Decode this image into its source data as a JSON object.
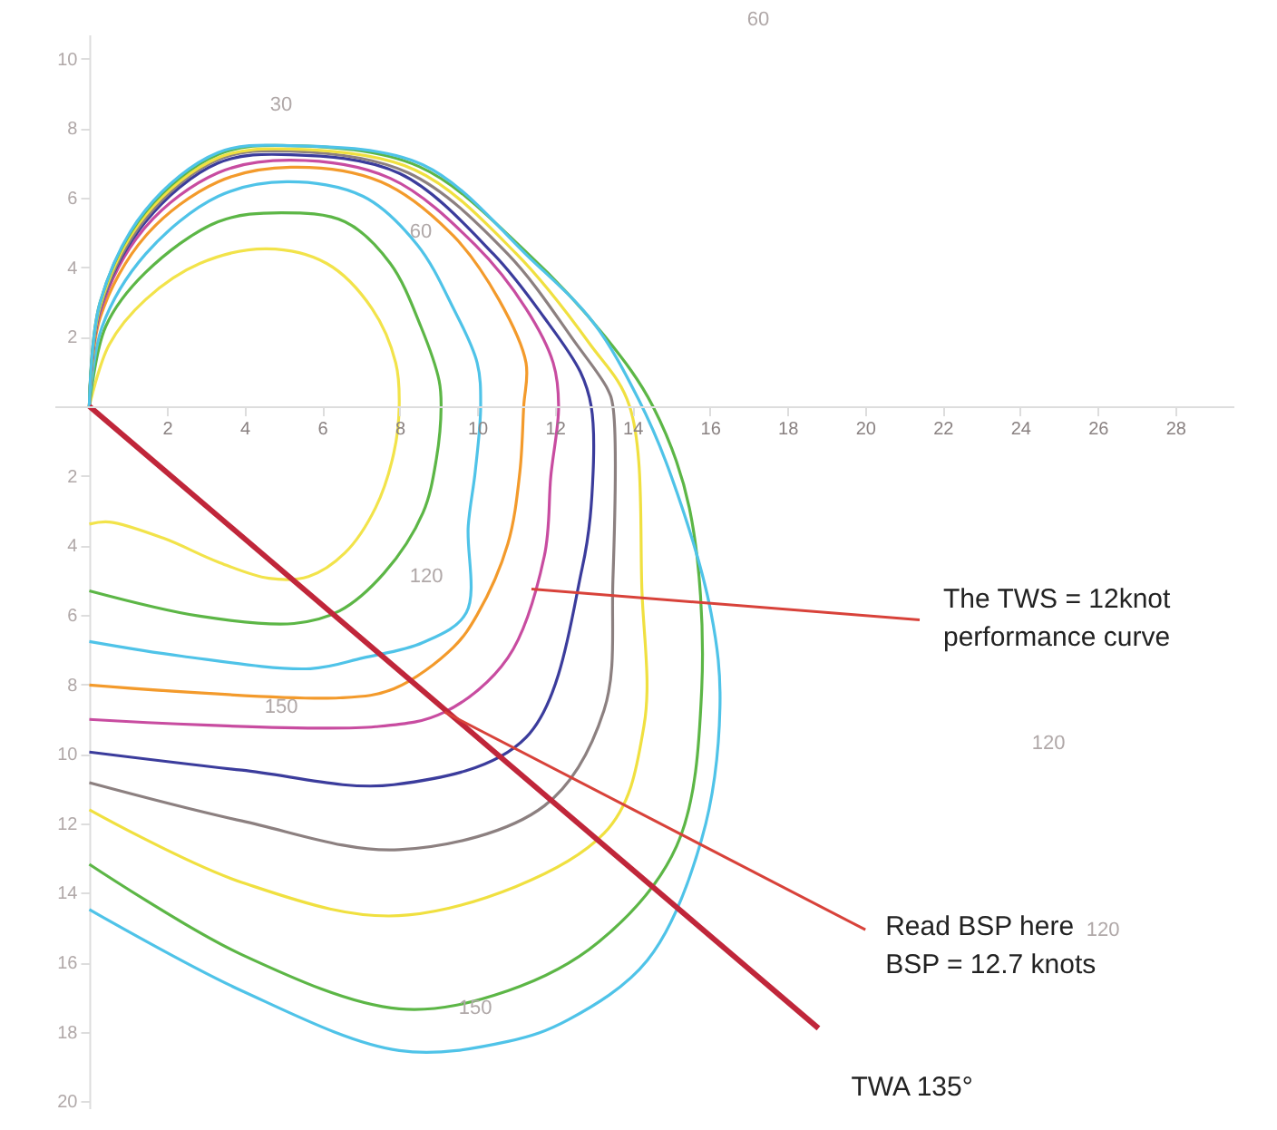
{
  "chart_data": {
    "type": "line",
    "xlim": [
      -0.9,
      29.5
    ],
    "ylim": [
      -20.2,
      10.7
    ],
    "xticks": [
      2,
      4,
      6,
      8,
      10,
      12,
      14,
      16,
      18,
      20,
      22,
      24,
      26,
      28
    ],
    "yticks": [
      10,
      8,
      6,
      4,
      2,
      {
        "value": -2,
        "label": "2"
      },
      {
        "value": -4,
        "label": "4"
      },
      {
        "value": -6,
        "label": "6"
      },
      {
        "value": -8,
        "label": "8"
      },
      {
        "value": -10,
        "label": "10"
      },
      {
        "value": -12,
        "label": "12"
      },
      {
        "value": -14,
        "label": "14"
      },
      {
        "value": -16,
        "label": "16"
      },
      {
        "value": -18,
        "label": "18"
      },
      {
        "value": -20,
        "label": "20"
      }
    ],
    "grid": false,
    "marker": "none",
    "line_style": "solid",
    "series": [
      {
        "color": "#f2e34a",
        "x": [
          0,
          0.51,
          1.45,
          2.85,
          4.58,
          6.12,
          7.29,
          7.9,
          7.99,
          7.85,
          7.38,
          6.59,
          5.65,
          4.63,
          3.32,
          1.92,
          0.51,
          0
        ],
        "values": [
          0,
          1.77,
          3.07,
          4.11,
          4.53,
          4.11,
          2.81,
          1.25,
          0,
          -1.35,
          -2.92,
          -4.22,
          -4.9,
          -4.95,
          -4.48,
          -3.8,
          -3.33,
          -3.39
        ]
      },
      {
        "color": "#5cb646",
        "x": [
          0,
          0.42,
          1.45,
          3.32,
          4.95,
          6.59,
          7.76,
          8.55,
          9.02,
          9.07,
          8.95,
          8.6,
          7.6,
          6.45,
          5.28,
          2.85,
          0
        ],
        "values": [
          0,
          2.29,
          3.85,
          5.31,
          5.57,
          5.31,
          4.11,
          2.29,
          0.73,
          0,
          -1.5,
          -3.07,
          -4.8,
          -5.89,
          -6.25,
          -6.04,
          -5.31
        ]
      },
      {
        "color": "#4fc3e8",
        "x": [
          0,
          0.33,
          1.45,
          3.32,
          5.09,
          7.06,
          8.46,
          9.39,
          10,
          10.09,
          9.95,
          9.77,
          9.72,
          8.6,
          7.06,
          5.7,
          2.38,
          0
        ],
        "values": [
          0,
          2.29,
          4.38,
          6.04,
          6.46,
          6.04,
          4.64,
          2.81,
          1.25,
          0,
          -1.88,
          -3.44,
          -5.94,
          -6.8,
          -7.24,
          -7.55,
          -7.19,
          -6.77
        ]
      },
      {
        "color": "#f39a2b",
        "x": [
          0,
          0.28,
          1.45,
          3.32,
          5.19,
          7.52,
          9.39,
          10.56,
          11.26,
          11.2,
          11.1,
          10.79,
          10.0,
          9.39,
          7.85,
          6.45,
          0
        ],
        "values": [
          0,
          2.55,
          4.9,
          6.46,
          6.88,
          6.46,
          4.9,
          3.07,
          1.25,
          0,
          -1.9,
          -3.96,
          -6.0,
          -6.93,
          -8.13,
          -8.39,
          -8.02
        ]
      },
      {
        "color": "#c84ca0",
        "x": [
          0,
          0.28,
          1.45,
          3.32,
          5.19,
          7.76,
          9.95,
          11.26,
          11.96,
          12.1,
          11.9,
          11.73,
          10.79,
          9.16,
          7.38,
          0
        ],
        "values": [
          0,
          2.71,
          5.16,
          6.72,
          7.08,
          6.56,
          4.64,
          2.81,
          1.25,
          0,
          -2.0,
          -4.32,
          -7.24,
          -8.8,
          -9.22,
          -9.01
        ]
      },
      {
        "color": "#3b3c9c",
        "x": [
          0,
          0.28,
          1.45,
          3.32,
          5.19,
          8.0,
          10.42,
          11.73,
          12.66,
          12.94,
          12.99,
          12.71,
          11.26,
          7.85,
          3.93,
          0
        ],
        "values": [
          0,
          2.81,
          5.31,
          7.0,
          7.24,
          6.7,
          4.38,
          2.55,
          0.99,
          0,
          -1.88,
          -4.64,
          -9.53,
          -10.89,
          -10.47,
          -9.95
        ]
      },
      {
        "color": "#8c8080",
        "x": [
          0,
          0.28,
          1.45,
          3.32,
          5.19,
          8.22,
          10.79,
          12.57,
          13.36,
          13.5,
          13.5,
          13.27,
          11.73,
          7.99,
          3.93,
          0
        ],
        "values": [
          0,
          2.81,
          5.4,
          7.1,
          7.34,
          6.72,
          4.38,
          1.77,
          0.5,
          0,
          -5.0,
          -8.75,
          -11.5,
          -12.76,
          -11.93,
          -10.83
        ]
      },
      {
        "color": "#f0e040",
        "x": [
          0,
          0.28,
          1.45,
          3.32,
          5.19,
          8.4,
          11.0,
          12.9,
          13.93,
          14.25,
          14.3,
          13.27,
          8.22,
          3.93,
          0
        ],
        "values": [
          0,
          2.9,
          5.5,
          7.15,
          7.4,
          6.8,
          4.4,
          1.8,
          0,
          -5.36,
          -9.2,
          -12.29,
          -14.64,
          -13.7,
          -11.61
        ]
      },
      {
        "color": "#5cb646",
        "x": [
          0,
          0.28,
          1.45,
          3.32,
          5.19,
          8.5,
          11.3,
          13.3,
          14.53,
          15.47,
          15.79,
          15.14,
          13.13,
          10.79,
          7.99,
          3.93,
          0
        ],
        "values": [
          0,
          3.0,
          5.6,
          7.25,
          7.5,
          6.9,
          4.4,
          2.0,
          0,
          -2.92,
          -8.13,
          -12.66,
          -15.42,
          -16.82,
          -17.34,
          -15.78,
          -13.18
        ]
      },
      {
        "color": "#4fc3e8",
        "x": [
          0,
          0.28,
          1.45,
          3.32,
          5.19,
          8.6,
          11.4,
          13.0,
          14.16,
          15.0,
          16.03,
          16.26,
          15.79,
          14.39,
          12.34,
          10.79,
          7.99,
          3.93,
          0
        ],
        "values": [
          0,
          3.0,
          5.65,
          7.3,
          7.5,
          6.95,
          4.22,
          2.4,
          0.2,
          -2.0,
          -5.94,
          -8.65,
          -12.45,
          -15.94,
          -17.66,
          -18.28,
          -18.54,
          -16.82,
          -14.48
        ]
      },
      {
        "name": "TWA 135°",
        "color": "#c0263a",
        "x": [
          0,
          18.8
        ],
        "values": [
          0,
          -17.9
        ]
      }
    ],
    "annotations": [
      {
        "text": "The TWS = 12knot\nperformance curve",
        "x": 11.4,
        "y": -5.26
      },
      {
        "text": "Read BSP here\nBSP = 12.7 knots",
        "x": 9.16,
        "y": -8.8
      },
      "30",
      "60",
      "120",
      "150",
      "60",
      "120",
      "120",
      "150"
    ]
  }
}
